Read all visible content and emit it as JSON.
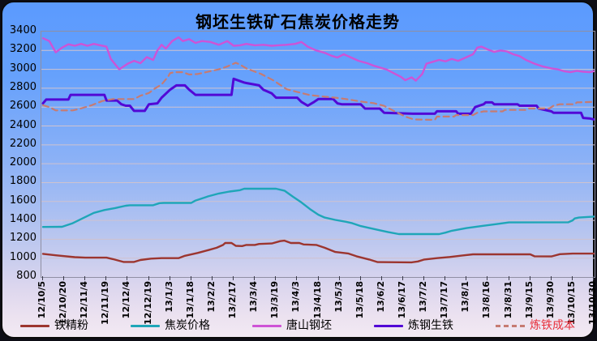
{
  "title": "钢坯生铁矿石焦炭价格走势",
  "chart_data": {
    "type": "line",
    "title": "钢坯生铁矿石焦炭价格走势",
    "grid": true,
    "legend_position": "bottom",
    "ylim": [
      800,
      3400
    ],
    "y_tick_step": 200,
    "y_ticks": [
      3400,
      3200,
      3000,
      2800,
      2600,
      2400,
      2200,
      2000,
      1800,
      1600,
      1400,
      1200,
      1000,
      800
    ],
    "x_unit": "tick_index",
    "x_tick_labels": [
      "12/10/5",
      "12/10/20",
      "12/11/4",
      "12/11/19",
      "12/12/4",
      "12/12/19",
      "13/1/3",
      "13/1/18",
      "13/2/2",
      "13/2/17",
      "13/3/4",
      "13/3/19",
      "13/4/3",
      "13/4/18",
      "13/5/3",
      "13/5/18",
      "13/6/2",
      "13/6/17",
      "13/7/2",
      "13/7/17",
      "13/8/1",
      "13/8/16",
      "13/8/31",
      "13/9/15",
      "13/9/30",
      "13/10/15",
      "13/10/30"
    ],
    "gridline_color": "#cfc2cf",
    "series": [
      {
        "name": "铁精粉",
        "color": "#9c352f",
        "style": "solid",
        "stroke_width": 2.4,
        "label_color": "#000000",
        "points": [
          [
            0,
            1045
          ],
          [
            0.6,
            1030
          ],
          [
            1.5,
            1010
          ],
          [
            2,
            1005
          ],
          [
            3,
            1005
          ],
          [
            3.3,
            990
          ],
          [
            3.8,
            960
          ],
          [
            4.3,
            960
          ],
          [
            4.6,
            980
          ],
          [
            5.1,
            995
          ],
          [
            5.6,
            1000
          ],
          [
            6.4,
            1000
          ],
          [
            6.7,
            1025
          ],
          [
            7.3,
            1055
          ],
          [
            7.8,
            1085
          ],
          [
            8.2,
            1110
          ],
          [
            8.5,
            1140
          ],
          [
            8.6,
            1160
          ],
          [
            8.9,
            1160
          ],
          [
            9.1,
            1130
          ],
          [
            9.4,
            1128
          ],
          [
            9.6,
            1140
          ],
          [
            10,
            1140
          ],
          [
            10.2,
            1150
          ],
          [
            10.8,
            1155
          ],
          [
            11.2,
            1180
          ],
          [
            11.4,
            1185
          ],
          [
            11.7,
            1160
          ],
          [
            12.1,
            1160
          ],
          [
            12.3,
            1145
          ],
          [
            12.9,
            1140
          ],
          [
            13.3,
            1110
          ],
          [
            13.8,
            1065
          ],
          [
            14.4,
            1050
          ],
          [
            14.8,
            1020
          ],
          [
            15.4,
            985
          ],
          [
            15.8,
            958
          ],
          [
            17.4,
            955
          ],
          [
            17.7,
            965
          ],
          [
            18,
            985
          ],
          [
            18.6,
            1000
          ],
          [
            19.2,
            1012
          ],
          [
            19.8,
            1028
          ],
          [
            20.3,
            1040
          ],
          [
            23,
            1040
          ],
          [
            23.2,
            1020
          ],
          [
            24,
            1018
          ],
          [
            24.4,
            1042
          ],
          [
            25,
            1048
          ],
          [
            26,
            1048
          ]
        ]
      },
      {
        "name": "焦炭价格",
        "color": "#1fa6b8",
        "style": "solid",
        "stroke_width": 2.4,
        "label_color": "#000000",
        "points": [
          [
            0,
            1330
          ],
          [
            0.9,
            1332
          ],
          [
            1.4,
            1370
          ],
          [
            1.9,
            1425
          ],
          [
            2.4,
            1480
          ],
          [
            2.9,
            1510
          ],
          [
            3.4,
            1530
          ],
          [
            3.9,
            1555
          ],
          [
            4.1,
            1560
          ],
          [
            5.2,
            1560
          ],
          [
            5.5,
            1583
          ],
          [
            5.7,
            1585
          ],
          [
            7,
            1585
          ],
          [
            7.2,
            1610
          ],
          [
            7.8,
            1655
          ],
          [
            8.3,
            1685
          ],
          [
            8.8,
            1705
          ],
          [
            9.3,
            1720
          ],
          [
            9.5,
            1735
          ],
          [
            11,
            1735
          ],
          [
            11.4,
            1715
          ],
          [
            11.8,
            1650
          ],
          [
            12.2,
            1590
          ],
          [
            12.6,
            1520
          ],
          [
            13,
            1460
          ],
          [
            13.3,
            1430
          ],
          [
            13.8,
            1405
          ],
          [
            14.3,
            1385
          ],
          [
            14.6,
            1370
          ],
          [
            15,
            1340
          ],
          [
            15.4,
            1320
          ],
          [
            15.9,
            1295
          ],
          [
            16.3,
            1275
          ],
          [
            16.8,
            1255
          ],
          [
            18.7,
            1255
          ],
          [
            19,
            1270
          ],
          [
            19.3,
            1290
          ],
          [
            20,
            1318
          ],
          [
            20.7,
            1340
          ],
          [
            21.4,
            1360
          ],
          [
            22,
            1378
          ],
          [
            24.8,
            1380
          ],
          [
            25,
            1400
          ],
          [
            25.1,
            1420
          ],
          [
            25.3,
            1430
          ],
          [
            26,
            1440
          ]
        ]
      },
      {
        "name": "唐山钢坯",
        "color": "#ce53d6",
        "style": "solid",
        "stroke_width": 2.4,
        "label_color": "#000000",
        "points": [
          [
            0,
            3330
          ],
          [
            0.3,
            3300
          ],
          [
            0.6,
            3180
          ],
          [
            0.9,
            3230
          ],
          [
            1.2,
            3265
          ],
          [
            1.5,
            3250
          ],
          [
            1.8,
            3270
          ],
          [
            2.1,
            3250
          ],
          [
            2.4,
            3270
          ],
          [
            2.7,
            3255
          ],
          [
            3,
            3240
          ],
          [
            3.2,
            3110
          ],
          [
            3.6,
            3000
          ],
          [
            4,
            3060
          ],
          [
            4.3,
            3090
          ],
          [
            4.6,
            3065
          ],
          [
            4.9,
            3130
          ],
          [
            5.2,
            3100
          ],
          [
            5.4,
            3200
          ],
          [
            5.6,
            3260
          ],
          [
            5.8,
            3220
          ],
          [
            6.1,
            3300
          ],
          [
            6.4,
            3340
          ],
          [
            6.6,
            3300
          ],
          [
            6.9,
            3320
          ],
          [
            7.2,
            3280
          ],
          [
            7.5,
            3300
          ],
          [
            7.9,
            3290
          ],
          [
            8.3,
            3260
          ],
          [
            8.7,
            3300
          ],
          [
            9,
            3250
          ],
          [
            9.3,
            3255
          ],
          [
            9.6,
            3270
          ],
          [
            10,
            3255
          ],
          [
            10.4,
            3260
          ],
          [
            10.8,
            3250
          ],
          [
            11.1,
            3255
          ],
          [
            11.5,
            3260
          ],
          [
            11.9,
            3270
          ],
          [
            12.2,
            3290
          ],
          [
            12.5,
            3240
          ],
          [
            12.9,
            3200
          ],
          [
            13.3,
            3175
          ],
          [
            13.6,
            3145
          ],
          [
            13.9,
            3125
          ],
          [
            14.2,
            3160
          ],
          [
            14.5,
            3130
          ],
          [
            14.9,
            3090
          ],
          [
            15.3,
            3065
          ],
          [
            15.6,
            3040
          ],
          [
            15.9,
            3020
          ],
          [
            16.2,
            3000
          ],
          [
            16.6,
            2955
          ],
          [
            16.9,
            2920
          ],
          [
            17.1,
            2885
          ],
          [
            17.4,
            2915
          ],
          [
            17.6,
            2880
          ],
          [
            17.9,
            2950
          ],
          [
            18.1,
            3060
          ],
          [
            18.4,
            3080
          ],
          [
            18.7,
            3100
          ],
          [
            19,
            3085
          ],
          [
            19.3,
            3110
          ],
          [
            19.6,
            3090
          ],
          [
            20,
            3130
          ],
          [
            20.3,
            3160
          ],
          [
            20.5,
            3230
          ],
          [
            20.7,
            3240
          ],
          [
            21,
            3210
          ],
          [
            21.3,
            3185
          ],
          [
            21.6,
            3200
          ],
          [
            21.9,
            3190
          ],
          [
            22.2,
            3160
          ],
          [
            22.5,
            3140
          ],
          [
            22.8,
            3100
          ],
          [
            23.2,
            3060
          ],
          [
            23.6,
            3030
          ],
          [
            24,
            3010
          ],
          [
            24.3,
            3000
          ],
          [
            24.6,
            2980
          ],
          [
            24.9,
            2970
          ],
          [
            25.2,
            2985
          ],
          [
            25.5,
            2975
          ],
          [
            25.8,
            2970
          ],
          [
            26,
            2980
          ]
        ]
      },
      {
        "name": "炼钢生铁",
        "color": "#5208d6",
        "style": "solid",
        "stroke_width": 3,
        "label_color": "#000000",
        "points": [
          [
            0,
            2640
          ],
          [
            0.15,
            2680
          ],
          [
            1.2,
            2680
          ],
          [
            1.3,
            2730
          ],
          [
            2.9,
            2730
          ],
          [
            3,
            2670
          ],
          [
            3.5,
            2670
          ],
          [
            3.7,
            2630
          ],
          [
            3.9,
            2615
          ],
          [
            4.1,
            2615
          ],
          [
            4.3,
            2560
          ],
          [
            4.8,
            2560
          ],
          [
            5,
            2630
          ],
          [
            5.4,
            2640
          ],
          [
            5.6,
            2700
          ],
          [
            6,
            2785
          ],
          [
            6.3,
            2830
          ],
          [
            6.7,
            2830
          ],
          [
            6.9,
            2785
          ],
          [
            7.2,
            2730
          ],
          [
            8.9,
            2730
          ],
          [
            9,
            2900
          ],
          [
            9.5,
            2860
          ],
          [
            9.6,
            2855
          ],
          [
            10.2,
            2830
          ],
          [
            10.4,
            2785
          ],
          [
            10.8,
            2745
          ],
          [
            11,
            2700
          ],
          [
            12,
            2700
          ],
          [
            12.2,
            2655
          ],
          [
            12.5,
            2615
          ],
          [
            12.8,
            2655
          ],
          [
            13,
            2685
          ],
          [
            13.7,
            2685
          ],
          [
            13.9,
            2640
          ],
          [
            14.1,
            2630
          ],
          [
            15,
            2630
          ],
          [
            15.2,
            2585
          ],
          [
            15.9,
            2585
          ],
          [
            16.1,
            2540
          ],
          [
            17.5,
            2530
          ],
          [
            18.5,
            2530
          ],
          [
            18.6,
            2556
          ],
          [
            19.5,
            2556
          ],
          [
            19.6,
            2530
          ],
          [
            20.2,
            2530
          ],
          [
            20.4,
            2600
          ],
          [
            20.8,
            2630
          ],
          [
            20.9,
            2650
          ],
          [
            21.2,
            2650
          ],
          [
            21.3,
            2630
          ],
          [
            22.4,
            2630
          ],
          [
            22.5,
            2615
          ],
          [
            23.3,
            2615
          ],
          [
            23.4,
            2585
          ],
          [
            24,
            2555
          ],
          [
            24.1,
            2540
          ],
          [
            25.4,
            2540
          ],
          [
            25.5,
            2485
          ],
          [
            25.8,
            2480
          ],
          [
            26,
            2470
          ]
        ]
      },
      {
        "name": "炼铁成本",
        "color": "#c67b72",
        "style": "dashed",
        "stroke_width": 2.2,
        "label_color": "#e8303c",
        "points": [
          [
            0,
            2620
          ],
          [
            0.3,
            2600
          ],
          [
            0.6,
            2565
          ],
          [
            1.4,
            2565
          ],
          [
            1.7,
            2580
          ],
          [
            2.3,
            2620
          ],
          [
            2.8,
            2665
          ],
          [
            3.3,
            2685
          ],
          [
            4.3,
            2685
          ],
          [
            4.6,
            2720
          ],
          [
            5,
            2750
          ],
          [
            5.3,
            2800
          ],
          [
            5.6,
            2840
          ],
          [
            5.9,
            2920
          ],
          [
            6,
            2960
          ],
          [
            6.2,
            2970
          ],
          [
            6.6,
            2970
          ],
          [
            6.9,
            2945
          ],
          [
            7.3,
            2950
          ],
          [
            7.7,
            2970
          ],
          [
            8.3,
            3000
          ],
          [
            8.7,
            3030
          ],
          [
            9.1,
            3070
          ],
          [
            9.3,
            3050
          ],
          [
            9.6,
            3010
          ],
          [
            10.3,
            2950
          ],
          [
            10.9,
            2880
          ],
          [
            11.5,
            2790
          ],
          [
            12.2,
            2750
          ],
          [
            12.6,
            2727
          ],
          [
            13.1,
            2715
          ],
          [
            13.8,
            2700
          ],
          [
            14.3,
            2685
          ],
          [
            15.1,
            2656
          ],
          [
            15.6,
            2642
          ],
          [
            16.1,
            2613
          ],
          [
            16.6,
            2556
          ],
          [
            17.1,
            2500
          ],
          [
            17.5,
            2470
          ],
          [
            18.5,
            2465
          ],
          [
            18.6,
            2500
          ],
          [
            19.4,
            2500
          ],
          [
            19.5,
            2515
          ],
          [
            20.3,
            2515
          ],
          [
            20.5,
            2540
          ],
          [
            20.8,
            2555
          ],
          [
            21.7,
            2555
          ],
          [
            21.8,
            2570
          ],
          [
            22.8,
            2570
          ],
          [
            22.9,
            2585
          ],
          [
            23.9,
            2585
          ],
          [
            24.1,
            2615
          ],
          [
            24.4,
            2630
          ],
          [
            25.1,
            2630
          ],
          [
            25.2,
            2650
          ],
          [
            26,
            2655
          ]
        ]
      }
    ]
  }
}
